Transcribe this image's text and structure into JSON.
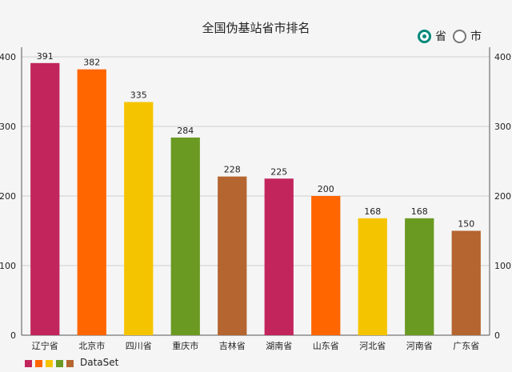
{
  "toggle": {
    "options": [
      {
        "label": "省",
        "checked": true
      },
      {
        "label": "市",
        "checked": false
      }
    ],
    "accent_color": "#00897b"
  },
  "chart_data": {
    "type": "bar",
    "title": "全国伪基站省市排名",
    "categories": [
      "辽宁省",
      "北京市",
      "四川省",
      "重庆市",
      "吉林省",
      "湖南省",
      "山东省",
      "河北省",
      "河南省",
      "广东省"
    ],
    "values": [
      391,
      382,
      335,
      284,
      228,
      225,
      200,
      168,
      168,
      150
    ],
    "colors": [
      "#c2255c",
      "#ff6600",
      "#f5c400",
      "#6a9a22",
      "#b5652f",
      "#c2255c",
      "#ff6600",
      "#f5c400",
      "#6a9a22",
      "#b5652f"
    ],
    "ylim": [
      0,
      400
    ],
    "yticks": [
      0,
      100,
      200,
      300,
      400
    ],
    "dual_y_axis": true,
    "data_labels": true,
    "grid": "horizontal",
    "legend": {
      "label": "DataSet",
      "position": "bottom-left",
      "colors": [
        "#c2255c",
        "#ff6600",
        "#f5c400",
        "#6a9a22",
        "#b5652f"
      ]
    }
  }
}
